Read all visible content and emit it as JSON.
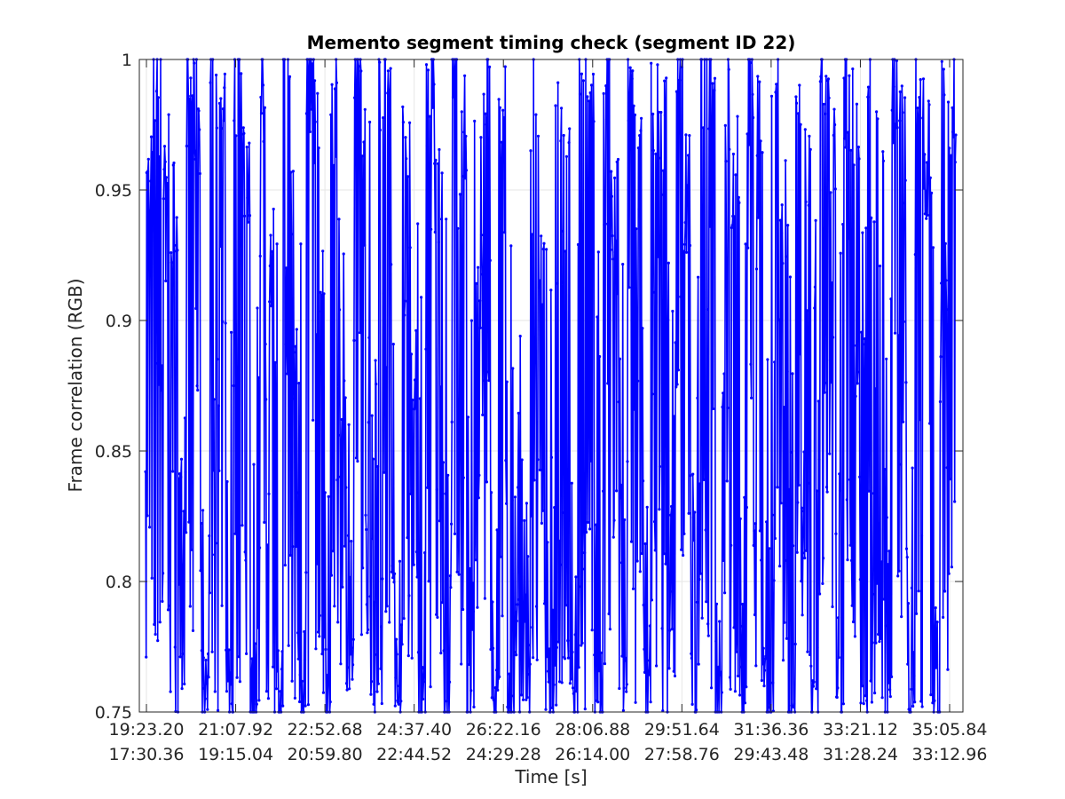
{
  "chart_data": {
    "type": "line",
    "title": "Memento segment timing check (segment ID 22)",
    "xlabel": "Time [s]",
    "ylabel": "Frame correlation (RGB)",
    "ylim": [
      0.75,
      1
    ],
    "yticks": [
      "0.75",
      "0.8",
      "0.85",
      "0.9",
      "0.95",
      "1"
    ],
    "xtick_labels_row1": [
      "19:23.20",
      "21:07.92",
      "22:52.68",
      "24:37.40",
      "26:22.16",
      "28:06.88",
      "29:51.64",
      "31:36.36",
      "33:21.12",
      "35:05.84"
    ],
    "xtick_labels_row2": [
      "17:30.36",
      "19:15.04",
      "20:59.80",
      "22:44.52",
      "24:29.28",
      "26:14.00",
      "27:58.76",
      "29:43.48",
      "31:28.24",
      "33:12.96"
    ],
    "grid": true,
    "series": [
      {
        "color": "#0000ff",
        "marker": "dot",
        "sample_values": [
          0.955,
          0.985,
          0.96,
          0.94,
          0.75,
          0.99,
          0.98,
          0.75,
          0.995,
          0.97,
          0.75,
          0.99,
          0.96,
          0.75,
          0.985,
          0.93,
          0.75,
          0.99,
          0.95,
          0.75,
          0.995,
          0.97,
          0.75,
          0.98,
          0.86,
          0.75,
          0.99,
          0.96,
          0.75,
          0.995,
          0.98,
          0.76,
          0.97,
          0.89,
          0.75,
          0.99,
          0.95,
          0.75,
          0.985,
          0.97,
          0.75,
          0.995,
          0.99,
          0.75,
          0.98,
          0.75,
          0.77,
          0.76,
          0.99,
          0.91,
          0.75,
          0.985,
          0.96,
          0.75,
          0.995,
          0.97,
          0.75,
          0.99,
          0.94,
          0.75,
          0.995,
          0.96,
          0.75,
          0.985,
          0.97,
          0.75,
          0.99,
          0.95,
          0.75,
          0.995,
          0.98,
          0.75,
          0.98,
          0.96,
          0.75,
          0.99,
          0.97,
          0.75,
          0.995,
          0.95,
          0.75,
          0.99,
          0.96,
          0.75,
          0.985,
          0.97,
          0.75,
          0.99,
          0.98,
          0.75,
          0.995,
          0.96,
          0.75,
          0.99,
          0.97,
          0.75,
          0.985,
          0.96,
          0.75,
          0.99,
          0.985
        ]
      }
    ]
  }
}
